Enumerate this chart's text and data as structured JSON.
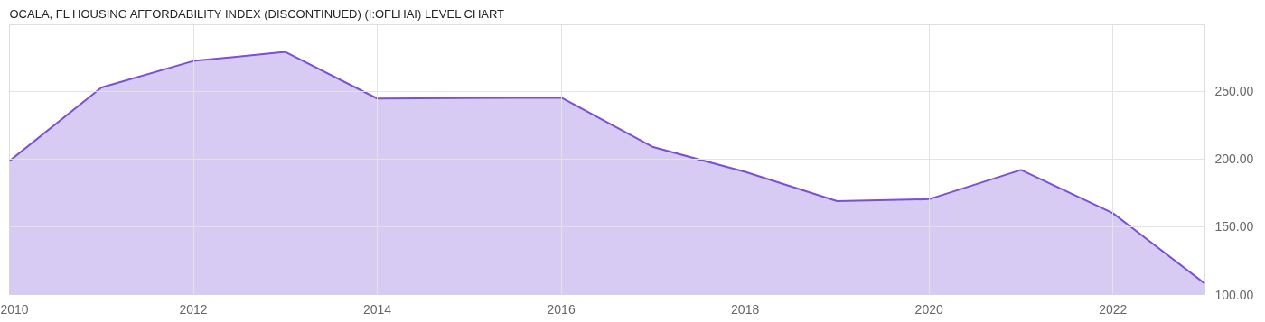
{
  "chart_data": {
    "type": "area",
    "title": "OCALA, FL HOUSING AFFORDABILITY INDEX (DISCONTINUED) (I:OFLHAI) LEVEL CHART",
    "x": [
      2010,
      2011,
      2012,
      2013,
      2014,
      2016,
      2017,
      2018,
      2019,
      2020,
      2021,
      2022,
      2023
    ],
    "series": [
      {
        "color": "#7b4fd8",
        "values": [
          198.6,
          252.7,
          272.3,
          279,
          244.6,
          245.3,
          208.8,
          190.5,
          168.9,
          170.3,
          191.9,
          160,
          108
        ]
      }
    ],
    "xlim": [
      2010,
      2023
    ],
    "xticks": [
      2010,
      2012,
      2014,
      2016,
      2018,
      2020,
      2022
    ],
    "ylim": [
      100,
      299
    ],
    "yticks": [
      {
        "value": 100,
        "label": "100.00"
      },
      {
        "value": 150,
        "label": "150.00"
      },
      {
        "value": 200,
        "label": "200.00"
      },
      {
        "value": 250,
        "label": "250.00"
      }
    ],
    "grid": true
  }
}
